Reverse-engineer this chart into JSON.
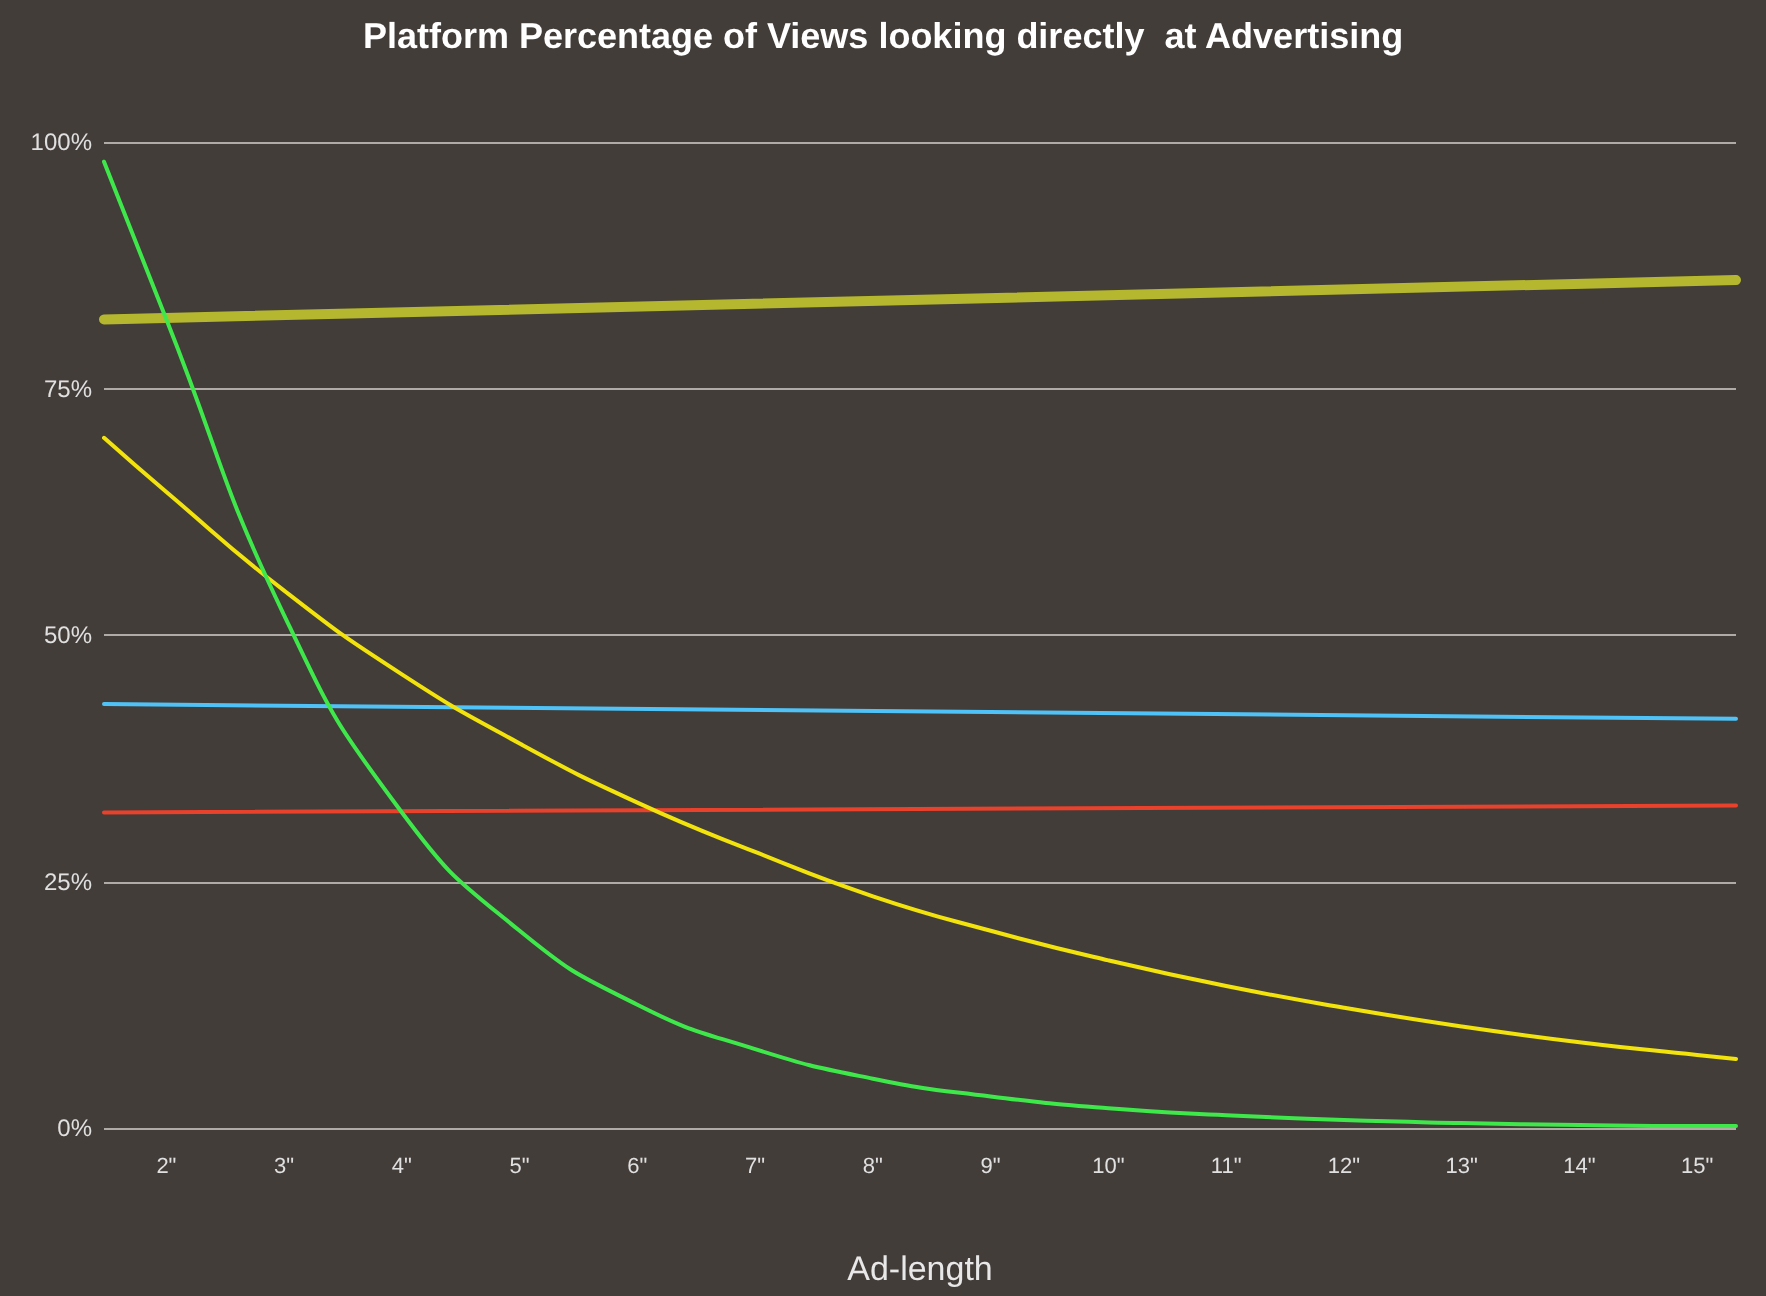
{
  "chart_data": {
    "type": "line",
    "title": "Platform Percentage of Views looking directly  at Advertising",
    "xlabel": "Ad-length",
    "xlim": [
      1.47,
      15.33
    ],
    "xticks": [
      {
        "value": 2,
        "label": "2\""
      },
      {
        "value": 3,
        "label": "3\""
      },
      {
        "value": 4,
        "label": "4\""
      },
      {
        "value": 5,
        "label": "5\""
      },
      {
        "value": 6,
        "label": "6\""
      },
      {
        "value": 7,
        "label": "7\""
      },
      {
        "value": 8,
        "label": "8\""
      },
      {
        "value": 9,
        "label": "9\""
      },
      {
        "value": 10,
        "label": "10\""
      },
      {
        "value": 11,
        "label": "11\""
      },
      {
        "value": 12,
        "label": "12\""
      },
      {
        "value": 13,
        "label": "13\""
      },
      {
        "value": 14,
        "label": "14\""
      },
      {
        "value": 15,
        "label": "15\""
      }
    ],
    "ylim": [
      0,
      100
    ],
    "yticks": [
      {
        "value": 0,
        "label": "0%"
      },
      {
        "value": 25,
        "label": "25%"
      },
      {
        "value": 50,
        "label": "50%"
      },
      {
        "value": 75,
        "label": "75%"
      },
      {
        "value": 100,
        "label": "100%"
      }
    ],
    "grid": "y",
    "marker": "none",
    "line_style": "solid",
    "series": [
      {
        "color": "#b5b82e",
        "x": [
          1.47,
          15.33
        ],
        "values": [
          82,
          86
        ]
      },
      {
        "color": "#4fc3f7",
        "x": [
          1.47,
          15.33
        ],
        "values": [
          43,
          41.5
        ]
      },
      {
        "color": "#e8412c",
        "x": [
          1.47,
          15.33
        ],
        "values": [
          32,
          32.7
        ]
      },
      {
        "color": "#f2e30c",
        "x": [
          1.47,
          2,
          3,
          4,
          5,
          6,
          7,
          8,
          9,
          10,
          11,
          12,
          13,
          14,
          15,
          15.33
        ],
        "values": [
          70,
          64.5,
          54.5,
          46,
          39,
          33,
          28,
          23.5,
          20,
          17,
          14.4,
          12.2,
          10.3,
          8.7,
          7.4,
          7
        ]
      },
      {
        "color": "#3ee84a",
        "x": [
          1.47,
          2,
          3,
          4,
          5,
          6,
          7,
          8,
          9,
          10,
          11,
          12,
          13,
          14,
          15,
          15.33
        ],
        "values": [
          98,
          82,
          52,
          32,
          20,
          12.5,
          8,
          5,
          3.2,
          2,
          1.3,
          0.8,
          0.5,
          0.3,
          0.2,
          0.2
        ]
      }
    ]
  }
}
